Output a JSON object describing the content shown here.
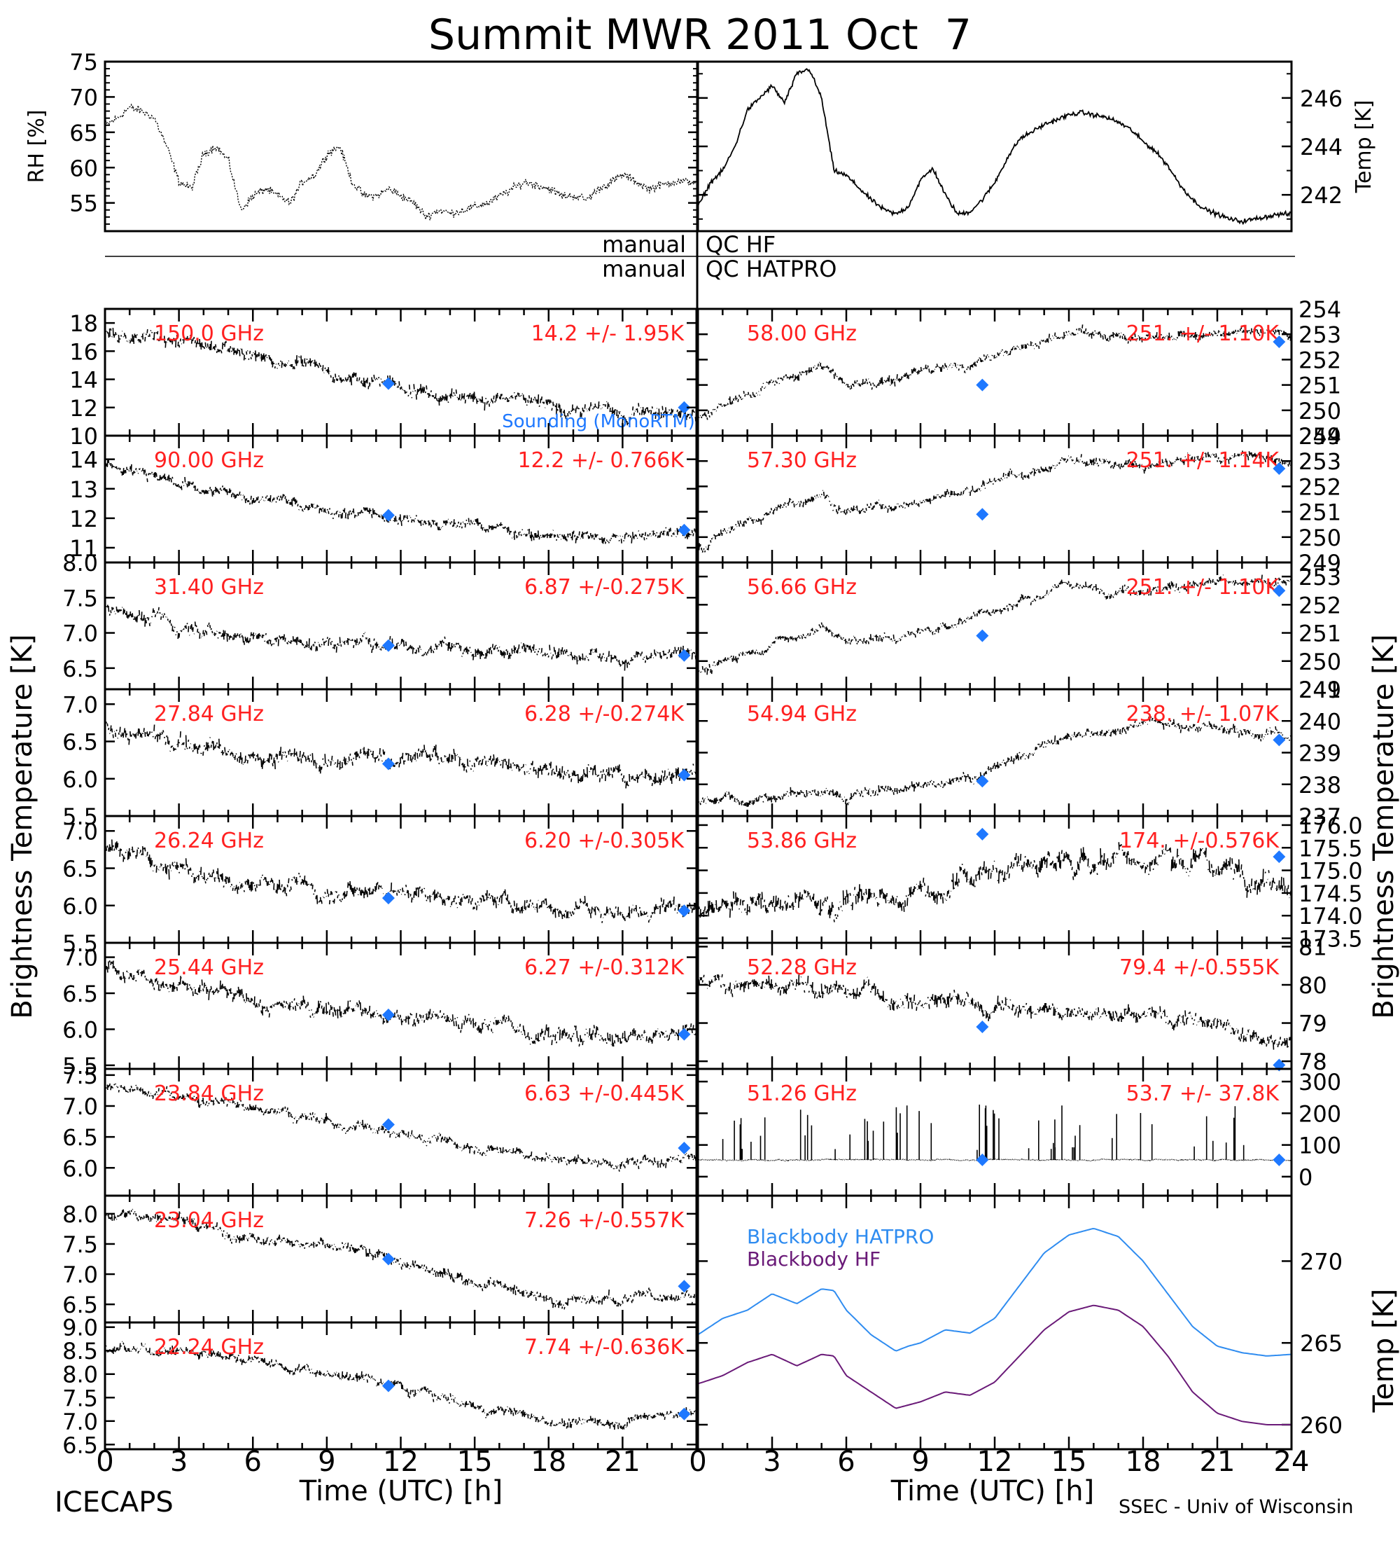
{
  "header": {
    "title": "Summit MWR 2011 Oct  7",
    "footer_left": "ICECAPS",
    "footer_right": "SSEC - Univ of Wisconsin",
    "qc_hf_left": "manual",
    "qc_hf_right": "QC HF",
    "qc_hatpro_left": "manual",
    "qc_hatpro_right": "QC HATPRO",
    "ylabel_left": "Brightness Temperature [K]",
    "ylabel_right": "Brightness Temperature [K]",
    "xlabel": "Time (UTC) [h]"
  },
  "colors": {
    "annotation": "#ff2020",
    "sounding": "#1e78ff",
    "bb_hatpro": "#2f8cf0",
    "bb_hf": "#6a1a78",
    "data": "#000000"
  },
  "chart_data": [
    {
      "type": "line",
      "panel": "rh",
      "ylabel": "RH [%]",
      "ylim": [
        51,
        75
      ],
      "yticks": [
        55,
        60,
        65,
        70,
        75
      ],
      "xlim": [
        0,
        24
      ],
      "x": [
        0,
        0.5,
        1,
        1.5,
        2,
        2.5,
        3,
        3.5,
        4,
        4.5,
        5,
        5.5,
        6,
        6.5,
        7,
        7.5,
        8,
        8.5,
        9,
        9.5,
        10,
        10.5,
        11,
        11.5,
        12,
        12.5,
        13,
        13.5,
        14,
        14.5,
        15,
        15.5,
        16,
        16.5,
        17,
        17.5,
        18,
        18.5,
        19,
        19.5,
        20,
        20.5,
        21,
        21.5,
        22,
        22.5,
        23,
        23.5,
        24
      ],
      "values": [
        66,
        67,
        68.5,
        68,
        67,
        63,
        58,
        57,
        62,
        63,
        61,
        54,
        56,
        57,
        56,
        55,
        58,
        59,
        62,
        63,
        58,
        56,
        56,
        57,
        56,
        55,
        53,
        54,
        53.5,
        54,
        54.5,
        55,
        56,
        57,
        58,
        57.5,
        57,
        56,
        56,
        55.5,
        57,
        58,
        59,
        58,
        57,
        57.5,
        58,
        58,
        58
      ]
    },
    {
      "type": "line",
      "panel": "air_temp",
      "ylabel": "Temp [K]",
      "ylim": [
        240.5,
        247.5
      ],
      "yticks": [
        242,
        244,
        246
      ],
      "xlim": [
        0,
        24
      ],
      "x": [
        0,
        0.5,
        1,
        1.5,
        2,
        2.5,
        3,
        3.5,
        4,
        4.5,
        5,
        5.5,
        6,
        6.5,
        7,
        7.5,
        8,
        8.5,
        9,
        9.5,
        10,
        10.5,
        11,
        11.5,
        12,
        12.5,
        13,
        13.5,
        14,
        14.5,
        15,
        15.5,
        16,
        16.5,
        17,
        17.5,
        18,
        18.5,
        19,
        19.5,
        20,
        20.5,
        21,
        21.5,
        22,
        22.5,
        23,
        23.5,
        24
      ],
      "values": [
        241.5,
        242.5,
        243,
        244,
        245.5,
        246,
        246.5,
        245.8,
        247,
        247.2,
        246,
        243,
        242.8,
        242.3,
        241.8,
        241.4,
        241.2,
        241.5,
        242.6,
        243.1,
        242,
        241.2,
        241.3,
        241.8,
        242.5,
        243.5,
        244.3,
        244.6,
        244.9,
        245.1,
        245.3,
        245.4,
        245.3,
        245.2,
        245.0,
        244.7,
        244.2,
        243.8,
        243.2,
        242.4,
        241.8,
        241.4,
        241.2,
        241.0,
        240.9,
        241.0,
        241.1,
        241.2,
        241.2
      ]
    },
    {
      "type": "scatter",
      "panel": "hf_150",
      "freq": "150.0 GHz",
      "stats": "14.2 +/-  1.95K",
      "legend": "Sounding (MonoRTM)",
      "ylim": [
        10,
        19
      ],
      "yticks": [
        10,
        12,
        14,
        16,
        18
      ],
      "xlim": [
        0,
        24
      ],
      "trend_x": [
        0,
        3,
        6,
        9,
        12,
        15,
        18,
        21,
        24
      ],
      "trend_y": [
        17.5,
        16.8,
        15.8,
        14.5,
        13.5,
        12.8,
        12.2,
        11.8,
        11.6
      ],
      "noise": 0.9,
      "sounding_x": [
        11.5,
        23.5
      ],
      "sounding_y": [
        13.7,
        12.0
      ]
    },
    {
      "type": "scatter",
      "panel": "hf_90",
      "freq": "90.00 GHz",
      "stats": "12.2 +/- 0.766K",
      "ylim": [
        10.5,
        14.8
      ],
      "yticks": [
        11,
        12,
        13,
        14
      ],
      "xlim": [
        0,
        24
      ],
      "trend_x": [
        0,
        3,
        6,
        9,
        12,
        15,
        18,
        21,
        24
      ],
      "trend_y": [
        13.8,
        13.2,
        12.7,
        12.3,
        12.0,
        11.7,
        11.4,
        11.4,
        11.6
      ],
      "noise": 0.35,
      "sounding_x": [
        11.5,
        23.5
      ],
      "sounding_y": [
        12.1,
        11.6
      ]
    },
    {
      "type": "scatter",
      "panel": "hat_31.40",
      "freq": "31.40 GHz",
      "stats": "6.87 +/-0.275K",
      "ylim": [
        6.2,
        8.0
      ],
      "yticks": [
        6.5,
        7.0,
        7.5,
        8.0
      ],
      "xlim": [
        0,
        24
      ],
      "trend_x": [
        0,
        3,
        6,
        9,
        12,
        15,
        18,
        21,
        24
      ],
      "trend_y": [
        7.35,
        7.1,
        6.95,
        6.9,
        6.85,
        6.8,
        6.75,
        6.65,
        6.7
      ],
      "noise": 0.18,
      "sounding_x": [
        11.5,
        23.5
      ],
      "sounding_y": [
        6.82,
        6.68
      ]
    },
    {
      "type": "scatter",
      "panel": "hat_27.84",
      "freq": "27.84 GHz",
      "stats": "6.28 +/-0.274K",
      "ylim": [
        5.5,
        7.2
      ],
      "yticks": [
        5.5,
        6.0,
        6.5,
        7.0
      ],
      "xlim": [
        0,
        24
      ],
      "trend_x": [
        0,
        3,
        6,
        9,
        12,
        15,
        18,
        21,
        24
      ],
      "trend_y": [
        6.7,
        6.5,
        6.3,
        6.25,
        6.3,
        6.25,
        6.1,
        6.0,
        6.05
      ],
      "noise": 0.2,
      "sounding_x": [
        11.5,
        23.5
      ],
      "sounding_y": [
        6.2,
        6.05
      ]
    },
    {
      "type": "scatter",
      "panel": "hat_26.24",
      "freq": "26.24 GHz",
      "stats": "6.20 +/-0.305K",
      "ylim": [
        5.5,
        7.2
      ],
      "yticks": [
        5.5,
        6.0,
        6.5,
        7.0
      ],
      "xlim": [
        0,
        24
      ],
      "trend_x": [
        0,
        3,
        6,
        9,
        12,
        15,
        18,
        21,
        24
      ],
      "trend_y": [
        6.8,
        6.5,
        6.3,
        6.2,
        6.2,
        6.1,
        6.0,
        5.9,
        6.0
      ],
      "noise": 0.2,
      "sounding_x": [
        11.5,
        23.5
      ],
      "sounding_y": [
        6.1,
        5.93
      ]
    },
    {
      "type": "scatter",
      "panel": "hat_25.44",
      "freq": "25.44 GHz",
      "stats": "6.27 +/-0.312K",
      "ylim": [
        5.45,
        7.2
      ],
      "yticks": [
        5.5,
        6.0,
        6.5,
        7.0
      ],
      "xlim": [
        0,
        24
      ],
      "trend_x": [
        0,
        3,
        6,
        9,
        12,
        15,
        18,
        21,
        24
      ],
      "trend_y": [
        6.85,
        6.6,
        6.4,
        6.3,
        6.2,
        6.1,
        5.95,
        5.9,
        5.95
      ],
      "noise": 0.2,
      "sounding_x": [
        11.5,
        23.5
      ],
      "sounding_y": [
        6.2,
        5.93
      ]
    },
    {
      "type": "scatter",
      "panel": "hat_23.84",
      "freq": "23.84 GHz",
      "stats": "6.63 +/-0.445K",
      "ylim": [
        5.55,
        7.6
      ],
      "yticks": [
        6.0,
        6.5,
        7.0,
        7.5
      ],
      "xlim": [
        0,
        24
      ],
      "trend_x": [
        0,
        3,
        6,
        9,
        12,
        15,
        18,
        21,
        24
      ],
      "trend_y": [
        7.3,
        7.15,
        6.95,
        6.75,
        6.55,
        6.35,
        6.15,
        6.05,
        6.2
      ],
      "noise": 0.15,
      "sounding_x": [
        11.5,
        23.5
      ],
      "sounding_y": [
        6.7,
        6.32
      ]
    },
    {
      "type": "scatter",
      "panel": "hat_23.04",
      "freq": "23.04 GHz",
      "stats": "7.26 +/-0.557K",
      "ylim": [
        6.2,
        8.3
      ],
      "yticks": [
        6.5,
        7.0,
        7.5,
        8.0
      ],
      "xlim": [
        0,
        24
      ],
      "trend_x": [
        0,
        3,
        6,
        9,
        12,
        15,
        18,
        21,
        24
      ],
      "trend_y": [
        8.0,
        7.9,
        7.6,
        7.5,
        7.2,
        6.9,
        6.6,
        6.55,
        6.75
      ],
      "noise": 0.17,
      "sounding_x": [
        11.5,
        23.5
      ],
      "sounding_y": [
        7.25,
        6.8
      ]
    },
    {
      "type": "scatter",
      "panel": "hat_22.24",
      "freq": "22.24 GHz",
      "stats": "7.74 +/-0.636K",
      "ylim": [
        6.4,
        9.1
      ],
      "yticks": [
        6.5,
        7.0,
        7.5,
        8.0,
        8.5,
        9.0
      ],
      "xlim": [
        0,
        24
      ],
      "trend_x": [
        0,
        3,
        6,
        9,
        12,
        15,
        18,
        21,
        24
      ],
      "trend_y": [
        8.5,
        8.5,
        8.3,
        8.0,
        7.7,
        7.3,
        7.0,
        7.0,
        7.2
      ],
      "noise": 0.2,
      "sounding_x": [
        11.5,
        23.5
      ],
      "sounding_y": [
        7.75,
        7.15
      ]
    },
    {
      "type": "scatter",
      "panel": "hat_58.00",
      "freq": "58.00 GHz",
      "stats": "251. +/- 1.10K",
      "ylim": [
        249,
        254
      ],
      "yticks": [
        249,
        250,
        251,
        252,
        253,
        254
      ],
      "xlim": [
        0,
        24
      ],
      "trend_x": [
        0,
        3,
        5,
        6,
        8,
        12,
        15,
        18,
        21,
        24
      ],
      "trend_y": [
        249.7,
        251.0,
        251.8,
        251.0,
        251.2,
        252.2,
        253.0,
        252.8,
        253.1,
        253.0
      ],
      "noise": 0.35,
      "sounding_x": [
        11.5,
        23.5
      ],
      "sounding_y": [
        251.0,
        252.7
      ]
    },
    {
      "type": "scatter",
      "panel": "hat_57.30",
      "freq": "57.30 GHz",
      "stats": "251. +/- 1.14K",
      "ylim": [
        249,
        254
      ],
      "yticks": [
        249,
        250,
        251,
        252,
        253,
        254
      ],
      "xlim": [
        0,
        24
      ],
      "trend_x": [
        0,
        3,
        5,
        6,
        8,
        12,
        15,
        18,
        21,
        24
      ],
      "trend_y": [
        249.7,
        251.0,
        251.8,
        251.0,
        251.2,
        252.2,
        253.0,
        252.8,
        253.1,
        253.0
      ],
      "noise": 0.35,
      "sounding_x": [
        11.5,
        23.5
      ],
      "sounding_y": [
        250.9,
        252.7
      ]
    },
    {
      "type": "scatter",
      "panel": "hat_56.66",
      "freq": "56.66 GHz",
      "stats": "251. +/- 1.10K",
      "ylim": [
        249,
        253.5
      ],
      "yticks": [
        249,
        250,
        251,
        252,
        253
      ],
      "xlim": [
        0,
        24
      ],
      "trend_x": [
        0,
        3,
        5,
        6,
        8,
        12,
        15,
        18,
        21,
        24
      ],
      "trend_y": [
        249.6,
        250.6,
        251.2,
        250.7,
        250.8,
        251.8,
        252.7,
        252.5,
        252.8,
        252.7
      ],
      "noise": 0.3,
      "sounding_x": [
        11.5,
        23.5
      ],
      "sounding_y": [
        250.9,
        252.5
      ]
    },
    {
      "type": "scatter",
      "panel": "hat_54.94",
      "freq": "54.94 GHz",
      "stats": "238. +/- 1.07K",
      "ylim": [
        237,
        241
      ],
      "yticks": [
        237,
        238,
        239,
        240,
        241
      ],
      "xlim": [
        0,
        24
      ],
      "trend_x": [
        0,
        3,
        6,
        9,
        12,
        15,
        18,
        21,
        24
      ],
      "trend_y": [
        237.4,
        237.6,
        237.7,
        237.9,
        238.5,
        239.5,
        240.0,
        239.8,
        239.5
      ],
      "noise": 0.3,
      "sounding_x": [
        11.5,
        23.5
      ],
      "sounding_y": [
        238.1,
        239.4
      ]
    },
    {
      "type": "scatter",
      "panel": "hat_53.86",
      "freq": "53.86 GHz",
      "stats": "174. +/-0.576K",
      "ylim": [
        173.4,
        176.2
      ],
      "yticks": [
        173.5,
        174.0,
        174.5,
        175.0,
        175.5,
        176.0
      ],
      "xlim": [
        0,
        24
      ],
      "trend_x": [
        0,
        3,
        6,
        9,
        12,
        15,
        18,
        21,
        24
      ],
      "trend_y": [
        174.1,
        174.2,
        174.3,
        174.5,
        175.0,
        175.2,
        175.3,
        175.1,
        174.7
      ],
      "noise": 0.45,
      "sounding_x": [
        11.5,
        23.5
      ],
      "sounding_y": [
        175.8,
        175.3
      ]
    },
    {
      "type": "scatter",
      "panel": "hat_52.28",
      "freq": "52.28 GHz",
      "stats": "79.4 +/-0.555K",
      "ylim": [
        77.8,
        81.1
      ],
      "yticks": [
        78,
        79,
        80,
        81
      ],
      "xlim": [
        0,
        24
      ],
      "trend_x": [
        0,
        3,
        6,
        9,
        12,
        15,
        18,
        21,
        24
      ],
      "trend_y": [
        80.0,
        79.9,
        79.7,
        79.6,
        79.4,
        79.3,
        79.2,
        79.0,
        78.5
      ],
      "noise": 0.4,
      "sounding_x": [
        11.5,
        23.5
      ],
      "sounding_y": [
        78.9,
        77.9
      ]
    },
    {
      "type": "scatter",
      "panel": "hat_51.26",
      "freq": "51.26 GHz",
      "stats": "53.7 +/- 37.8K",
      "ylim": [
        -60,
        340
      ],
      "yticks": [
        0,
        100,
        200,
        300
      ],
      "xlim": [
        0,
        24
      ],
      "trend_x": [
        0,
        24
      ],
      "trend_y": [
        53,
        53
      ],
      "noise": 4,
      "spikes": true,
      "sounding_x": [
        11.5,
        23.5
      ],
      "sounding_y": [
        53,
        53
      ]
    },
    {
      "type": "line",
      "panel": "blackbody",
      "ylabel": "Temp [K]",
      "ylim": [
        258.5,
        274
      ],
      "yticks": [
        260,
        265,
        270
      ],
      "xlim": [
        0,
        24
      ],
      "legend": [
        "Blackbody HATPRO",
        "Blackbody HF"
      ],
      "series": [
        {
          "name": "Blackbody HATPRO",
          "x": [
            0,
            1,
            2,
            3,
            4,
            5,
            5.5,
            6,
            7,
            8,
            8.5,
            9,
            10,
            11,
            12,
            13,
            14,
            15,
            16,
            17,
            18,
            19,
            20,
            21,
            22,
            23,
            24
          ],
          "values": [
            265.5,
            266.5,
            267,
            268,
            267.4,
            268.3,
            268.2,
            267,
            265.5,
            264.5,
            264.8,
            265,
            265.8,
            265.6,
            266.5,
            268.5,
            270.5,
            271.6,
            272,
            271.5,
            270,
            268,
            266,
            264.8,
            264.4,
            264.2,
            264.3
          ]
        },
        {
          "name": "Blackbody HF",
          "x": [
            0,
            1,
            2,
            3,
            4,
            5,
            5.5,
            6,
            7,
            8,
            8.5,
            9,
            10,
            11,
            12,
            13,
            14,
            15,
            16,
            17,
            18,
            19,
            20,
            21,
            22,
            23,
            24
          ],
          "values": [
            262.5,
            263,
            263.8,
            264.3,
            263.6,
            264.3,
            264.2,
            263,
            262,
            261,
            261.2,
            261.4,
            262,
            261.8,
            262.6,
            264.2,
            265.8,
            266.9,
            267.3,
            267,
            266,
            264.2,
            262,
            260.7,
            260.2,
            260.0,
            260.0
          ]
        }
      ]
    }
  ],
  "xticks_bottom_left": [
    "0",
    "3",
    "6",
    "9",
    "12",
    "15",
    "18",
    "21"
  ],
  "xticks_bottom_right": [
    "0",
    "3",
    "6",
    "9",
    "12",
    "15",
    "18",
    "21",
    "24"
  ]
}
